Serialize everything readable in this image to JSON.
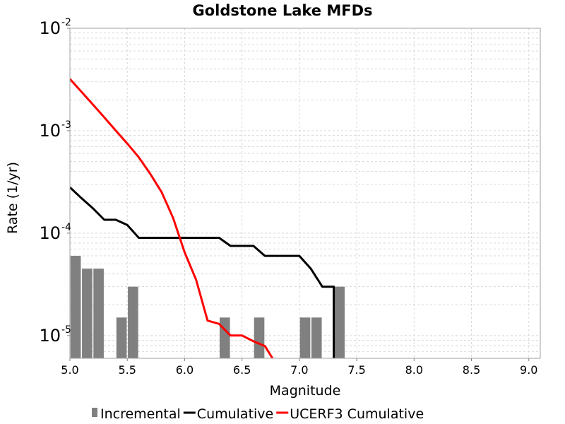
{
  "chart_data": {
    "type": "bar",
    "title": "Goldstone Lake MFDs",
    "xlabel": "Magnitude",
    "ylabel": "Rate (1/yr)",
    "x_scale": "linear",
    "y_scale": "log",
    "xlim": [
      5.0,
      9.1
    ],
    "ylim": [
      6e-06,
      0.01
    ],
    "x_ticks": [
      "5.0",
      "5.5",
      "6.0",
      "6.5",
      "7.0",
      "7.5",
      "8.0",
      "8.5",
      "9.0"
    ],
    "y_ticks": [
      {
        "value": 1e-05,
        "base": "10",
        "exp": "-5"
      },
      {
        "value": 0.0001,
        "base": "10",
        "exp": "-4"
      },
      {
        "value": 0.001,
        "base": "10",
        "exp": "-3"
      },
      {
        "value": 0.01,
        "base": "10",
        "exp": "-2"
      }
    ],
    "grid": true,
    "legend_position": "bottom",
    "series": [
      {
        "name": "Incremental",
        "type": "bar",
        "color": "#808080",
        "bar_width": 0.09,
        "x": [
          5.05,
          5.15,
          5.25,
          5.45,
          5.55,
          6.35,
          6.65,
          7.05,
          7.15,
          7.35
        ],
        "y": [
          6e-05,
          4.5e-05,
          4.5e-05,
          1.5e-05,
          3e-05,
          1.5e-05,
          1.5e-05,
          1.5e-05,
          1.5e-05,
          3e-05
        ]
      },
      {
        "name": "Cumulative",
        "type": "line",
        "color": "#000000",
        "x": [
          5.0,
          5.1,
          5.2,
          5.3,
          5.4,
          5.5,
          5.6,
          5.7,
          6.3,
          6.4,
          6.6,
          6.7,
          7.0,
          7.1,
          7.2,
          7.3,
          7.3
        ],
        "y": [
          0.00028,
          0.00022,
          0.000175,
          0.000135,
          0.000135,
          0.00012,
          9e-05,
          9e-05,
          9e-05,
          7.5e-05,
          7.5e-05,
          6e-05,
          6e-05,
          4.5e-05,
          3e-05,
          3e-05,
          6e-06
        ]
      },
      {
        "name": "UCERF3 Cumulative",
        "type": "line",
        "color": "#ff0000",
        "x": [
          5.0,
          5.1,
          5.2,
          5.3,
          5.4,
          5.5,
          5.6,
          5.7,
          5.8,
          5.9,
          6.0,
          6.1,
          6.2,
          6.3,
          6.4,
          6.5,
          6.6,
          6.7,
          6.8
        ],
        "y": [
          0.0032,
          0.0024,
          0.0018,
          0.00135,
          0.001,
          0.00075,
          0.00055,
          0.00038,
          0.00025,
          0.00014,
          6.5e-05,
          3.5e-05,
          1.4e-05,
          1.3e-05,
          1e-05,
          1e-05,
          8.8e-06,
          7.9e-06,
          5.2e-06
        ]
      }
    ]
  }
}
